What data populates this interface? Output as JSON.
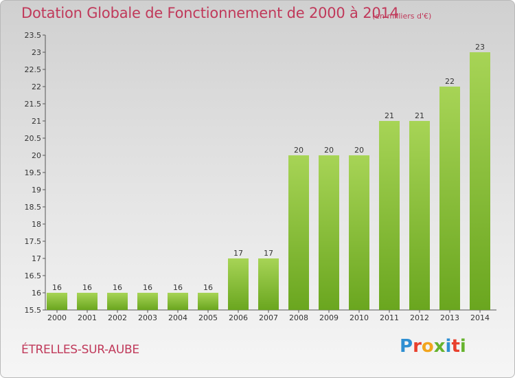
{
  "header": {
    "title": "Dotation Globale de Fonctionnement de 2000 à 2014",
    "subtitle": "(en milliers d'€)"
  },
  "footer": {
    "commune": "ÉTRELLES-SUR-AUBE",
    "logo": "Proxiti"
  },
  "colors": {
    "title": "#c0395a",
    "bar_light": "#a7d456",
    "bar_dark": "#6aa61f"
  },
  "chart_data": {
    "type": "bar",
    "categories": [
      "2000",
      "2001",
      "2002",
      "2003",
      "2004",
      "2005",
      "2006",
      "2007",
      "2008",
      "2009",
      "2010",
      "2011",
      "2012",
      "2013",
      "2014"
    ],
    "values": [
      16,
      16,
      16,
      16,
      16,
      16,
      17,
      17,
      20,
      20,
      20,
      21,
      21,
      22,
      23
    ],
    "data_labels": [
      "16",
      "16",
      "16",
      "16",
      "16",
      "16",
      "17",
      "17",
      "20",
      "20",
      "20",
      "21",
      "21",
      "22",
      "23"
    ],
    "ylim": [
      15.5,
      23.5
    ],
    "yticks": [
      "15.5",
      "16",
      "16.5",
      "17",
      "17.5",
      "18",
      "18.5",
      "19",
      "19.5",
      "20",
      "20.5",
      "21",
      "21.5",
      "22",
      "22.5",
      "23",
      "23.5"
    ],
    "xlabel": "",
    "ylabel": "",
    "grid": false,
    "legend": "none"
  }
}
